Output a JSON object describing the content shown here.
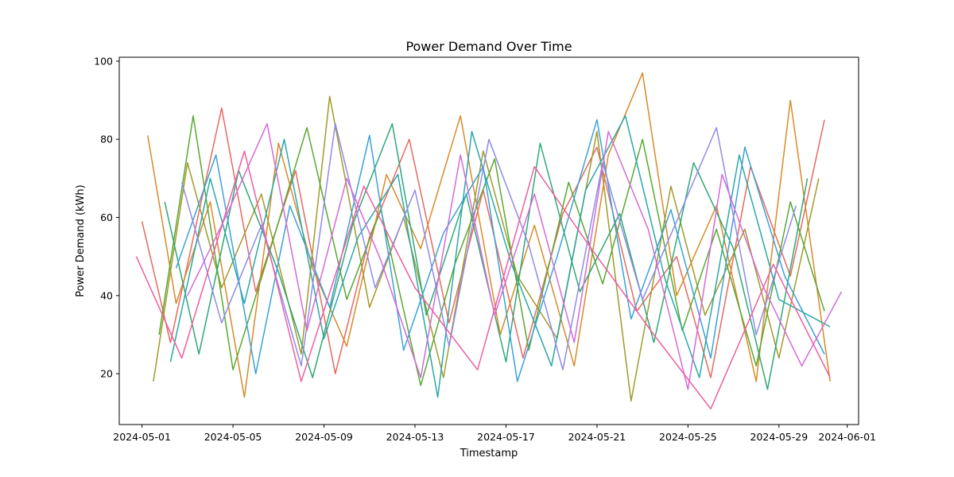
{
  "chart_data": {
    "type": "line",
    "title": "Power Demand Over Time",
    "xlabel": "Timestamp",
    "ylabel": "Power Demand (kWh)",
    "xlim": [
      "2024-04-30T00:00",
      "2024-06-01T12:00"
    ],
    "ylim": [
      7,
      101
    ],
    "x_ticks": [
      "2024-05-01",
      "2024-05-05",
      "2024-05-09",
      "2024-05-13",
      "2024-05-17",
      "2024-05-21",
      "2024-05-25",
      "2024-05-29",
      "2024-06-01"
    ],
    "y_ticks": [
      20,
      40,
      60,
      80,
      100
    ],
    "grid": false,
    "legend": "none",
    "colors": [
      "#e8695f",
      "#d98a28",
      "#a19a2a",
      "#58a832",
      "#2fa878",
      "#2aa8a8",
      "#3ba1d8",
      "#8f8be8",
      "#d46ad8",
      "#ee5ea0"
    ],
    "series": [
      {
        "x": [
          "2024-05-01T00:00",
          "2024-05-02T06:00",
          "2024-05-04T12:00",
          "2024-05-06T00:00",
          "2024-05-07T18:00",
          "2024-05-09T12:00",
          "2024-05-11T00:00",
          "2024-05-12T18:00",
          "2024-05-14T12:00",
          "2024-05-16T00:00",
          "2024-05-17T18:00",
          "2024-05-19T12:00",
          "2024-05-21T00:00",
          "2024-05-22T18:00",
          "2024-05-24T12:00",
          "2024-05-26T00:00",
          "2024-05-27T18:00",
          "2024-05-29T12:00",
          "2024-05-31T00:00"
        ],
        "y": [
          59,
          28,
          88,
          41,
          72,
          20,
          55,
          80,
          33,
          67,
          24,
          61,
          78,
          36,
          50,
          19,
          73,
          45,
          85
        ]
      },
      {
        "x": [
          "2024-05-01T06:00",
          "2024-05-02T12:00",
          "2024-05-04T00:00",
          "2024-05-05T12:00",
          "2024-05-07T00:00",
          "2024-05-08T12:00",
          "2024-05-10T00:00",
          "2024-05-11T18:00",
          "2024-05-13T06:00",
          "2024-05-15T00:00",
          "2024-05-16T18:00",
          "2024-05-18T06:00",
          "2024-05-20T00:00",
          "2024-05-21T12:00",
          "2024-05-23T00:00",
          "2024-05-24T12:00",
          "2024-05-26T06:00",
          "2024-05-28T00:00",
          "2024-05-29T12:00",
          "2024-05-31T06:00"
        ],
        "y": [
          81,
          38,
          64,
          14,
          79,
          47,
          27,
          71,
          52,
          86,
          30,
          58,
          22,
          76,
          97,
          40,
          63,
          18,
          90,
          18
        ]
      },
      {
        "x": [
          "2024-05-01T12:00",
          "2024-05-03T00:00",
          "2024-05-04T12:00",
          "2024-05-06T06:00",
          "2024-05-08T00:00",
          "2024-05-09T06:00",
          "2024-05-11T00:00",
          "2024-05-12T12:00",
          "2024-05-14T06:00",
          "2024-05-16T00:00",
          "2024-05-17T12:00",
          "2024-05-19T06:00",
          "2024-05-21T00:00",
          "2024-05-22T12:00",
          "2024-05-24T06:00",
          "2024-05-25T18:00",
          "2024-05-27T12:00",
          "2024-05-29T00:00",
          "2024-05-30T18:00"
        ],
        "y": [
          18,
          74,
          42,
          66,
          25,
          91,
          37,
          60,
          19,
          77,
          45,
          29,
          82,
          13,
          68,
          35,
          57,
          24,
          70
        ]
      },
      {
        "x": [
          "2024-05-01T18:00",
          "2024-05-03T06:00",
          "2024-05-05T00:00",
          "2024-05-06T18:00",
          "2024-05-08T06:00",
          "2024-05-10T00:00",
          "2024-05-11T12:00",
          "2024-05-13T06:00",
          "2024-05-14T18:00",
          "2024-05-16T12:00",
          "2024-05-18T00:00",
          "2024-05-19T18:00",
          "2024-05-21T06:00",
          "2024-05-23T00:00",
          "2024-05-24T18:00",
          "2024-05-26T06:00",
          "2024-05-28T00:00",
          "2024-05-29T12:00",
          "2024-05-31T00:00"
        ],
        "y": [
          30,
          86,
          21,
          54,
          83,
          39,
          62,
          17,
          48,
          75,
          26,
          69,
          43,
          80,
          31,
          57,
          22,
          64,
          36
        ]
      },
      {
        "x": [
          "2024-05-02T00:00",
          "2024-05-03T12:00",
          "2024-05-05T06:00",
          "2024-05-07T00:00",
          "2024-05-08T12:00",
          "2024-05-10T06:00",
          "2024-05-12T00:00",
          "2024-05-13T12:00",
          "2024-05-15T06:00",
          "2024-05-17T00:00",
          "2024-05-18T12:00",
          "2024-05-20T06:00",
          "2024-05-22T00:00",
          "2024-05-23T12:00",
          "2024-05-25T06:00",
          "2024-05-27T00:00",
          "2024-05-28T12:00",
          "2024-05-30T06:00"
        ],
        "y": [
          64,
          25,
          72,
          46,
          19,
          58,
          84,
          35,
          66,
          23,
          79,
          41,
          61,
          28,
          74,
          52,
          16,
          70
        ]
      },
      {
        "x": [
          "2024-05-02T06:00",
          "2024-05-04T00:00",
          "2024-05-05T12:00",
          "2024-05-07T06:00",
          "2024-05-09T00:00",
          "2024-05-10T12:00",
          "2024-05-12T06:00",
          "2024-05-14T00:00",
          "2024-05-15T12:00",
          "2024-05-17T06:00",
          "2024-05-19T00:00",
          "2024-05-20T12:00",
          "2024-05-22T06:00",
          "2024-05-24T00:00",
          "2024-05-25T12:00",
          "2024-05-27T06:00",
          "2024-05-29T00:00",
          "2024-05-31T06:00"
        ],
        "y": [
          23,
          70,
          38,
          80,
          29,
          55,
          71,
          14,
          82,
          48,
          22,
          67,
          86,
          44,
          19,
          76,
          39,
          32
        ]
      },
      {
        "x": [
          "2024-05-02T12:00",
          "2024-05-04T06:00",
          "2024-05-06T00:00",
          "2024-05-07T12:00",
          "2024-05-09T06:00",
          "2024-05-11T00:00",
          "2024-05-12T12:00",
          "2024-05-14T06:00",
          "2024-05-16T00:00",
          "2024-05-17T12:00",
          "2024-05-19T06:00",
          "2024-05-21T00:00",
          "2024-05-22T12:00",
          "2024-05-24T06:00",
          "2024-05-26T00:00",
          "2024-05-27T12:00",
          "2024-05-29T06:00",
          "2024-05-31T00:00"
        ],
        "y": [
          47,
          76,
          20,
          63,
          37,
          81,
          26,
          56,
          73,
          18,
          50,
          85,
          34,
          62,
          24,
          78,
          45,
          25
        ]
      },
      {
        "x": [
          "2024-05-02T18:00",
          "2024-05-04T12:00",
          "2024-05-06T06:00",
          "2024-05-08T00:00",
          "2024-05-09T12:00",
          "2024-05-11T06:00",
          "2024-05-13T00:00",
          "2024-05-14T12:00",
          "2024-05-16T06:00",
          "2024-05-18T00:00",
          "2024-05-19T12:00",
          "2024-05-21T06:00",
          "2024-05-23T00:00",
          "2024-05-24T12:00",
          "2024-05-26T06:00",
          "2024-05-28T00:00",
          "2024-05-29T18:00"
        ],
        "y": [
          69,
          33,
          58,
          22,
          84,
          42,
          67,
          27,
          80,
          53,
          21,
          74,
          39,
          59,
          83,
          30,
          63
        ]
      },
      {
        "x": [
          "2024-05-03T00:00",
          "2024-05-04T18:00",
          "2024-05-06T12:00",
          "2024-05-08T06:00",
          "2024-05-10T00:00",
          "2024-05-11T12:00",
          "2024-05-13T06:00",
          "2024-05-15T00:00",
          "2024-05-16T12:00",
          "2024-05-18T06:00",
          "2024-05-20T00:00",
          "2024-05-21T12:00",
          "2024-05-23T06:00",
          "2024-05-25T00:00",
          "2024-05-26T12:00",
          "2024-05-28T06:00",
          "2024-05-30T00:00",
          "2024-05-31T18:00"
        ],
        "y": [
          40,
          61,
          84,
          31,
          70,
          49,
          19,
          76,
          35,
          66,
          28,
          82,
          57,
          16,
          71,
          43,
          22,
          41
        ]
      },
      {
        "x": [
          "2024-04-30T18:00",
          "2024-05-02T18:00",
          "2024-05-05T12:00",
          "2024-05-08T00:00",
          "2024-05-10T18:00",
          "2024-05-13T00:00",
          "2024-05-15T18:00",
          "2024-05-18T06:00",
          "2024-05-20T18:00",
          "2024-05-23T12:00",
          "2024-05-26T00:00",
          "2024-05-28T18:00",
          "2024-05-31T06:00"
        ],
        "y": [
          50,
          24,
          77,
          18,
          68,
          42,
          21,
          73,
          52,
          30,
          11,
          48,
          19
        ]
      }
    ]
  }
}
